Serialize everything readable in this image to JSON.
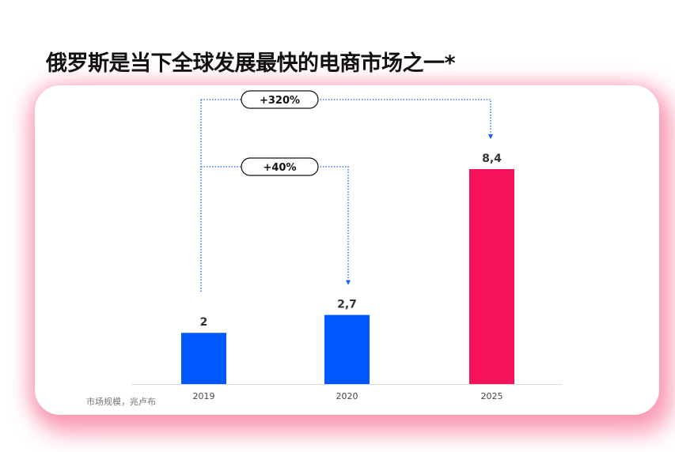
{
  "title": "俄罗斯是当下全球发展最快的电商市场之一*",
  "chart_data": {
    "type": "bar",
    "categories": [
      "2019",
      "2020",
      "2025"
    ],
    "values": [
      2,
      2.7,
      8.4
    ],
    "value_labels": [
      "2",
      "2,7",
      "8,4"
    ],
    "colors": [
      "#0058ff",
      "#0058ff",
      "#f5125a"
    ],
    "ylabel": "市场规模，兆卢布",
    "ylim": [
      0,
      8.4
    ],
    "grid": false,
    "annotations": [
      {
        "label": "+320%",
        "from": "2019",
        "to": "2025"
      },
      {
        "label": "+40%",
        "from": "2019",
        "to": "2020"
      }
    ]
  }
}
